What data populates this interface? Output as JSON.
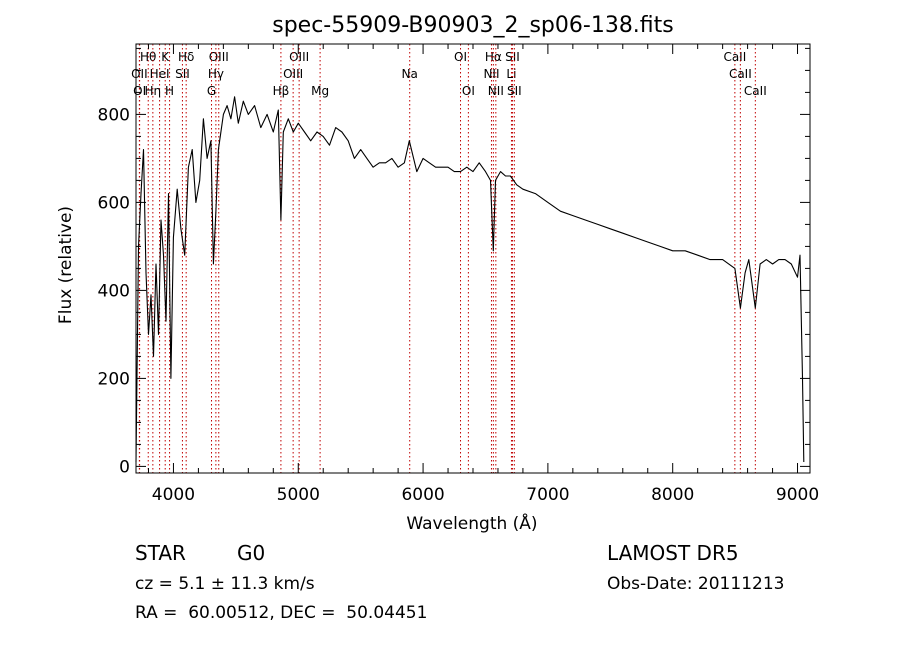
{
  "chart_data": {
    "type": "line",
    "title": "spec-55909-B90903_2_sp06-138.fits",
    "xlabel": "Wavelength (Å)",
    "ylabel": "Flux (relative)",
    "xlim": [
      3700,
      9100
    ],
    "ylim": [
      -15,
      960
    ],
    "xticks": [
      4000,
      5000,
      6000,
      7000,
      8000,
      9000
    ],
    "yticks": [
      0,
      200,
      400,
      600,
      800
    ],
    "grid": false,
    "series": [
      {
        "x": [
          3700,
          3720,
          3740,
          3760,
          3780,
          3800,
          3820,
          3840,
          3860,
          3880,
          3900,
          3920,
          3940,
          3960,
          3980,
          4000,
          4030,
          4060,
          4090,
          4120,
          4150,
          4180,
          4210,
          4240,
          4270,
          4300,
          4320,
          4340,
          4360,
          4380,
          4400,
          4430,
          4460,
          4490,
          4520,
          4560,
          4600,
          4650,
          4700,
          4750,
          4800,
          4840,
          4861,
          4880,
          4920,
          4960,
          5000,
          5050,
          5100,
          5150,
          5200,
          5250,
          5300,
          5350,
          5400,
          5450,
          5500,
          5550,
          5600,
          5650,
          5700,
          5750,
          5800,
          5850,
          5890,
          5950,
          6000,
          6050,
          6100,
          6150,
          6200,
          6250,
          6300,
          6350,
          6400,
          6450,
          6500,
          6540,
          6563,
          6580,
          6620,
          6660,
          6700,
          6750,
          6800,
          6900,
          7000,
          7100,
          7200,
          7300,
          7400,
          7500,
          7600,
          7700,
          7800,
          7900,
          8000,
          8100,
          8200,
          8300,
          8400,
          8498,
          8542,
          8580,
          8610,
          8662,
          8700,
          8750,
          8800,
          8850,
          8900,
          8950,
          9000,
          9020,
          9040,
          9050
        ],
        "y": [
          10,
          500,
          620,
          720,
          440,
          300,
          390,
          250,
          460,
          300,
          560,
          480,
          330,
          620,
          200,
          520,
          630,
          540,
          480,
          680,
          720,
          600,
          650,
          790,
          700,
          740,
          460,
          580,
          720,
          760,
          800,
          820,
          790,
          840,
          780,
          830,
          800,
          820,
          770,
          800,
          760,
          810,
          560,
          760,
          790,
          760,
          780,
          760,
          740,
          760,
          750,
          730,
          770,
          760,
          740,
          700,
          720,
          700,
          680,
          690,
          690,
          700,
          680,
          690,
          740,
          670,
          700,
          690,
          680,
          680,
          680,
          670,
          670,
          680,
          670,
          690,
          670,
          650,
          490,
          650,
          670,
          660,
          660,
          640,
          630,
          620,
          600,
          580,
          570,
          560,
          550,
          540,
          530,
          520,
          510,
          500,
          490,
          490,
          480,
          470,
          470,
          450,
          360,
          440,
          470,
          360,
          460,
          470,
          460,
          470,
          470,
          460,
          430,
          480,
          200,
          10
        ]
      }
    ],
    "lines": [
      {
        "name": "Hθ",
        "x": 3798,
        "row": 1
      },
      {
        "name": "K",
        "x": 3934,
        "row": 1
      },
      {
        "name": "Hδ",
        "x": 4102,
        "row": 1
      },
      {
        "name": "OIII",
        "x": 4363,
        "row": 1
      },
      {
        "name": "OIII",
        "x": 5007,
        "row": 1
      },
      {
        "name": "OI",
        "x": 6300,
        "row": 1
      },
      {
        "name": "Hα",
        "x": 6563,
        "row": 1
      },
      {
        "name": "SII",
        "x": 6716,
        "row": 1
      },
      {
        "name": "CaII",
        "x": 8498,
        "row": 1
      },
      {
        "name": "OII",
        "x": 3727,
        "row": 2
      },
      {
        "name": "HeI",
        "x": 3889,
        "row": 2
      },
      {
        "name": "SII",
        "x": 4072,
        "row": 2
      },
      {
        "name": "Hγ",
        "x": 4340,
        "row": 2
      },
      {
        "name": "OIII",
        "x": 4959,
        "row": 2
      },
      {
        "name": "Na",
        "x": 5893,
        "row": 2
      },
      {
        "name": "NII",
        "x": 6548,
        "row": 2
      },
      {
        "name": "Li",
        "x": 6708,
        "row": 2
      },
      {
        "name": "CaII",
        "x": 8542,
        "row": 2
      },
      {
        "name": "OI",
        "x": 3729,
        "row": 3
      },
      {
        "name": "Hη",
        "x": 3835,
        "row": 3
      },
      {
        "name": "H",
        "x": 3969,
        "row": 3
      },
      {
        "name": "G",
        "x": 4305,
        "row": 3
      },
      {
        "name": "Hβ",
        "x": 4861,
        "row": 3
      },
      {
        "name": "Mg",
        "x": 5175,
        "row": 3
      },
      {
        "name": "OI",
        "x": 6363,
        "row": 3
      },
      {
        "name": "NII",
        "x": 6583,
        "row": 3
      },
      {
        "name": "SII",
        "x": 6731,
        "row": 3
      },
      {
        "name": "CaII",
        "x": 8662,
        "row": 3
      }
    ],
    "line_color": "#c00000"
  },
  "info": {
    "object_class": "STAR",
    "subclass": "G0",
    "survey": "LAMOST DR5",
    "redshift": "cz = 5.1 ± 11.3 km/s",
    "obs_date": "Obs-Date: 20111213",
    "coords": "RA =  60.00512, DEC =  50.04451"
  }
}
